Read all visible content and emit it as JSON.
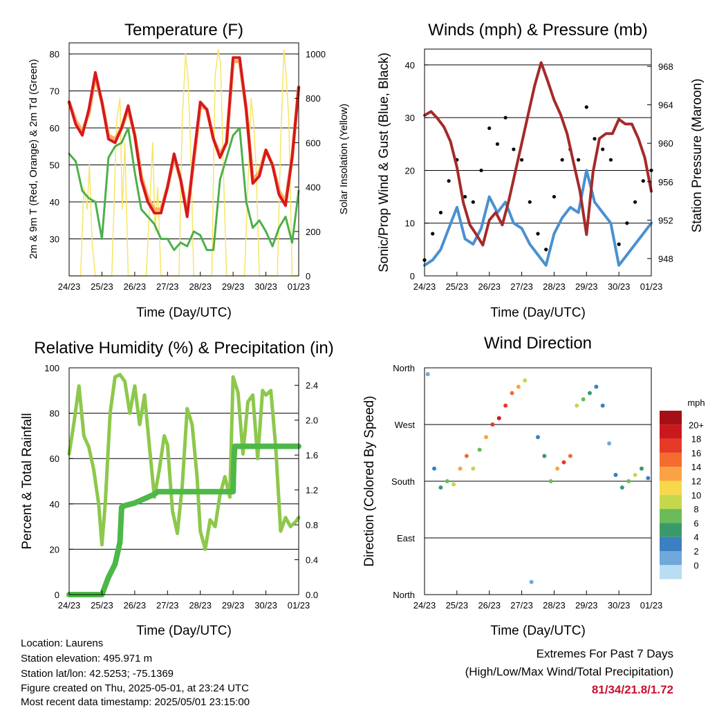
{
  "chart_data": [
    {
      "type": "line",
      "title": "Temperature (F)",
      "xlabel": "Time (Day/UTC)",
      "ylabel": "2m & 9m T (Red, Orange) & 2m Td (Green)",
      "y2label": "Solar Insolation (Yellow)",
      "x_ticks": [
        "24/23",
        "25/23",
        "26/23",
        "27/23",
        "28/23",
        "29/23",
        "30/23",
        "01/23"
      ],
      "ylim": [
        20,
        83
      ],
      "y_ticks": [
        30,
        40,
        50,
        60,
        70,
        80
      ],
      "y2lim": [
        0,
        1050
      ],
      "y2_ticks": [
        0,
        200,
        400,
        600,
        800,
        1000
      ],
      "grid": "horizontal at major y ticks",
      "colors": {
        "t2m": "#d7191c",
        "t9m": "#fdae61",
        "td2m": "#4daf4a",
        "solar": "#f7e463"
      },
      "series": [
        {
          "name": "2m T",
          "axis": "left",
          "x": [
            0,
            0.2,
            0.4,
            0.6,
            0.8,
            1.0,
            1.2,
            1.4,
            1.6,
            1.8,
            2.0,
            2.2,
            2.4,
            2.6,
            2.8,
            3.0,
            3.2,
            3.4,
            3.6,
            3.8,
            4.0,
            4.2,
            4.4,
            4.6,
            4.8,
            5.0,
            5.2,
            5.4,
            5.6,
            5.8,
            6.0,
            6.2,
            6.4,
            6.6,
            6.8,
            7.0
          ],
          "values": [
            67,
            61,
            58,
            65,
            75,
            67,
            57,
            56,
            60,
            66,
            58,
            46,
            40,
            37,
            37,
            44,
            53,
            46,
            36,
            52,
            67,
            65,
            57,
            52,
            56,
            79,
            79,
            65,
            45,
            47,
            54,
            50,
            42,
            39,
            52,
            71
          ]
        },
        {
          "name": "9m T",
          "axis": "left",
          "x": [
            0,
            0.2,
            0.4,
            0.6,
            0.8,
            1.0,
            1.2,
            1.4,
            1.6,
            1.8,
            2.0,
            2.2,
            2.4,
            2.6,
            2.8,
            3.0,
            3.2,
            3.4,
            3.6,
            3.8,
            4.0,
            4.2,
            4.4,
            4.6,
            4.8,
            5.0,
            5.2,
            5.4,
            5.6,
            5.8,
            6.0,
            6.2,
            6.4,
            6.6,
            6.8,
            7.0
          ],
          "values": [
            67,
            62,
            59,
            64,
            74,
            67,
            58,
            57,
            60,
            65,
            58,
            47,
            41,
            38,
            38,
            44,
            52,
            46,
            37,
            51,
            66,
            65,
            57,
            53,
            56,
            78,
            78,
            65,
            46,
            48,
            54,
            50,
            43,
            40,
            52,
            71
          ]
        },
        {
          "name": "2m Td",
          "axis": "left",
          "x": [
            0,
            0.2,
            0.4,
            0.6,
            0.8,
            1.0,
            1.2,
            1.4,
            1.6,
            1.8,
            2.0,
            2.2,
            2.4,
            2.6,
            2.8,
            3.0,
            3.2,
            3.4,
            3.6,
            3.8,
            4.0,
            4.2,
            4.4,
            4.6,
            4.8,
            5.0,
            5.2,
            5.4,
            5.6,
            5.8,
            6.0,
            6.2,
            6.4,
            6.6,
            6.8,
            7.0
          ],
          "values": [
            53,
            51,
            43,
            41,
            40,
            30,
            52,
            55,
            56,
            60,
            48,
            38,
            36,
            34,
            30,
            30,
            27,
            29,
            28,
            32,
            31,
            27,
            27,
            46,
            52,
            58,
            60,
            40,
            33,
            35,
            32,
            28,
            33,
            36,
            29,
            43
          ]
        },
        {
          "name": "Solar Insolation",
          "axis": "right",
          "x": [
            0,
            0.35,
            0.45,
            0.55,
            0.62,
            0.7,
            0.8,
            1.0,
            1.3,
            1.45,
            1.55,
            1.62,
            1.7,
            1.8,
            2.0,
            2.35,
            2.45,
            2.55,
            2.62,
            2.7,
            2.8,
            3.0,
            3.35,
            3.45,
            3.55,
            3.62,
            3.7,
            3.8,
            4.0,
            4.35,
            4.45,
            4.55,
            4.62,
            4.7,
            4.8,
            5.0,
            5.35,
            5.45,
            5.55,
            5.62,
            5.7,
            5.8,
            6.0,
            6.35,
            6.45,
            6.55,
            6.62,
            6.7,
            6.8,
            7.0
          ],
          "values": [
            0,
            0,
            400,
            300,
            500,
            150,
            0,
            0,
            0,
            700,
            800,
            300,
            600,
            0,
            0,
            0,
            300,
            600,
            200,
            400,
            0,
            0,
            0,
            700,
            1000,
            900,
            600,
            0,
            0,
            0,
            900,
            1020,
            950,
            500,
            0,
            0,
            0,
            400,
            800,
            700,
            500,
            0,
            0,
            0,
            600,
            1020,
            900,
            700,
            0,
            0
          ]
        }
      ]
    },
    {
      "type": "line",
      "title": "Winds (mph) & Pressure (mb)",
      "xlabel": "Time (Day/UTC)",
      "ylabel": "Sonic/Prop Wind & Gust (Blue, Black)",
      "y2label": "Station Pressure (Maroon)",
      "x_ticks": [
        "24/23",
        "25/23",
        "26/23",
        "27/23",
        "28/23",
        "29/23",
        "30/23",
        "01/23"
      ],
      "ylim": [
        0,
        43
      ],
      "y_ticks": [
        0,
        10,
        20,
        30,
        40
      ],
      "y2lim": [
        946.2,
        969.8
      ],
      "y2_ticks": [
        948,
        952,
        956,
        960,
        964,
        968
      ],
      "grid": "horizontal at major y ticks",
      "colors": {
        "wind": "#4a90d0",
        "gust": "#000000",
        "pressure": "#a52a2a"
      },
      "series": [
        {
          "name": "Sonic/Prop Wind",
          "axis": "left",
          "x": [
            0,
            0.25,
            0.5,
            0.75,
            1.0,
            1.25,
            1.5,
            1.75,
            2.0,
            2.25,
            2.5,
            2.75,
            3.0,
            3.25,
            3.5,
            3.75,
            4.0,
            4.25,
            4.5,
            4.75,
            5.0,
            5.25,
            5.5,
            5.75,
            6.0,
            6.25,
            6.5,
            6.75,
            7.0
          ],
          "values": [
            2,
            3,
            5,
            9,
            13,
            7,
            6,
            9,
            15,
            12,
            14,
            10,
            9,
            6,
            4,
            2,
            8,
            11,
            13,
            12,
            20,
            14,
            12,
            10,
            2,
            4,
            6,
            8,
            10
          ]
        },
        {
          "name": "Gust",
          "axis": "left",
          "x": [
            0,
            0.25,
            0.5,
            0.75,
            1.0,
            1.25,
            1.5,
            1.75,
            2.0,
            2.25,
            2.5,
            2.75,
            3.0,
            3.25,
            3.5,
            3.75,
            4.0,
            4.25,
            4.5,
            4.75,
            5.0,
            5.25,
            5.5,
            5.75,
            6.0,
            6.25,
            6.5,
            6.75,
            7.0
          ],
          "values": [
            3,
            8,
            12,
            18,
            22,
            15,
            14,
            20,
            28,
            25,
            30,
            24,
            22,
            14,
            8,
            5,
            15,
            22,
            24,
            22,
            32,
            26,
            24,
            22,
            6,
            10,
            14,
            18,
            20
          ]
        },
        {
          "name": "Station Pressure",
          "axis": "right",
          "x": [
            0,
            0.2,
            0.4,
            0.6,
            0.8,
            1.0,
            1.2,
            1.4,
            1.6,
            1.8,
            2.0,
            2.2,
            2.4,
            2.6,
            2.8,
            3.0,
            3.2,
            3.4,
            3.6,
            3.8,
            4.0,
            4.2,
            4.4,
            4.6,
            4.8,
            5.0,
            5.2,
            5.4,
            5.6,
            5.8,
            6.0,
            6.2,
            6.4,
            6.6,
            6.8,
            7.0
          ],
          "values": [
            962.9,
            963.3,
            962.6,
            961.7,
            960.2,
            957.5,
            953.8,
            951.5,
            950.5,
            949.4,
            952.0,
            952.8,
            951.5,
            954.0,
            957.0,
            960.0,
            963.0,
            966.0,
            968.4,
            966.5,
            964.5,
            963.0,
            961.0,
            958.0,
            955.0,
            950.5,
            957.0,
            960.5,
            961.0,
            961.0,
            962.5,
            962.0,
            962.0,
            960.5,
            958.5,
            955.0
          ]
        }
      ]
    },
    {
      "type": "line",
      "title": "Relative Humidity (%) & Precipitation (in)",
      "xlabel": "Time (Day/UTC)",
      "ylabel": "Percent & Total Rainfall",
      "x_ticks": [
        "24/23",
        "25/23",
        "26/23",
        "27/23",
        "28/23",
        "29/23",
        "30/23",
        "01/23"
      ],
      "ylim": [
        0,
        100
      ],
      "y_ticks": [
        0,
        20,
        40,
        60,
        80,
        100
      ],
      "y2lim": [
        0,
        2.6
      ],
      "y2_ticks": [
        "0.0",
        "0.4",
        "0.8",
        "1.2",
        "1.6",
        "2.0",
        "2.4"
      ],
      "grid": "horizontal at major y ticks",
      "colors": {
        "rh": "#8dc84b",
        "precip": "#4db848"
      },
      "series": [
        {
          "name": "Relative Humidity",
          "axis": "left",
          "x": [
            0,
            0.15,
            0.3,
            0.45,
            0.6,
            0.75,
            0.9,
            1.0,
            1.1,
            1.25,
            1.4,
            1.55,
            1.7,
            1.85,
            2.0,
            2.15,
            2.3,
            2.45,
            2.6,
            2.75,
            2.9,
            3.0,
            3.15,
            3.3,
            3.45,
            3.6,
            3.75,
            3.9,
            4.0,
            4.15,
            4.3,
            4.45,
            4.6,
            4.75,
            4.9,
            5.0,
            5.15,
            5.3,
            5.45,
            5.6,
            5.75,
            5.9,
            6.0,
            6.15,
            6.3,
            6.45,
            6.6,
            6.75,
            6.9,
            7.0
          ],
          "values": [
            62,
            76,
            92,
            70,
            65,
            55,
            40,
            22,
            40,
            80,
            96,
            97,
            94,
            80,
            92,
            75,
            88,
            65,
            43,
            55,
            70,
            66,
            37,
            27,
            48,
            82,
            75,
            52,
            28,
            20,
            33,
            30,
            44,
            52,
            43,
            96,
            89,
            62,
            85,
            88,
            60,
            90,
            88,
            90,
            65,
            28,
            34,
            30,
            32,
            34
          ]
        },
        {
          "name": "Total Precipitation",
          "axis": "right",
          "x": [
            0,
            0.5,
            1.0,
            1.2,
            1.4,
            1.55,
            1.6,
            1.7,
            2.0,
            2.3,
            2.6,
            2.7,
            3.0,
            4.0,
            5.0,
            5.02,
            5.05,
            5.5,
            6.0,
            7.0
          ],
          "values": [
            0,
            0,
            0,
            0.2,
            0.35,
            0.6,
            1.0,
            1.02,
            1.05,
            1.1,
            1.15,
            1.18,
            1.18,
            1.18,
            1.18,
            1.5,
            1.7,
            1.7,
            1.7,
            1.7
          ]
        }
      ]
    },
    {
      "type": "scatter",
      "title": "Wind Direction",
      "xlabel": "Time (Day/UTC)",
      "ylabel": "Direction (Colored By Speed)",
      "x_ticks": [
        "24/23",
        "25/23",
        "26/23",
        "27/23",
        "28/23",
        "29/23",
        "30/23",
        "01/23"
      ],
      "y_ticks": [
        "North",
        "East",
        "South",
        "West",
        "North"
      ],
      "ylim": [
        0,
        360
      ],
      "grid": "horizontal at major y ticks",
      "legend": {
        "title": "mph",
        "placement": "right",
        "labels": [
          "20+",
          "18",
          "16",
          "14",
          "12",
          "10",
          "8",
          "6",
          "4",
          "2",
          "0"
        ],
        "colors": [
          "#a50f15",
          "#cb181d",
          "#e53a26",
          "#f46d2e",
          "#fba244",
          "#f6d84a",
          "#c5d84c",
          "#6cbb5b",
          "#3a9a6a",
          "#3c7fc2",
          "#6fa8db",
          "#b9ddf2"
        ]
      },
      "series": [
        {
          "name": "Wind Direction",
          "x": [
            0.1,
            0.3,
            0.5,
            0.7,
            0.9,
            1.1,
            1.3,
            1.5,
            1.7,
            1.9,
            2.1,
            2.3,
            2.5,
            2.7,
            2.9,
            3.1,
            3.3,
            3.5,
            3.7,
            3.9,
            4.1,
            4.3,
            4.5,
            4.7,
            4.9,
            5.1,
            5.3,
            5.5,
            5.7,
            5.9,
            6.1,
            6.3,
            6.5,
            6.7,
            6.9
          ],
          "values": [
            350,
            200,
            170,
            180,
            175,
            200,
            220,
            200,
            230,
            250,
            270,
            280,
            300,
            320,
            330,
            340,
            20,
            250,
            220,
            180,
            200,
            210,
            220,
            300,
            310,
            320,
            330,
            300,
            240,
            190,
            170,
            180,
            190,
            200,
            185
          ],
          "speeds": [
            2,
            4,
            6,
            8,
            10,
            12,
            14,
            10,
            8,
            12,
            16,
            18,
            16,
            14,
            12,
            10,
            2,
            4,
            6,
            8,
            12,
            16,
            14,
            10,
            8,
            6,
            4,
            3,
            2,
            4,
            6,
            8,
            10,
            6,
            4
          ]
        }
      ]
    }
  ],
  "info": {
    "location": "Location: Laurens",
    "elevation": "Station elevation: 495.971 m",
    "latlon": "Station lat/lon: 42.5253; -75.1369",
    "created": "Figure created on Thu, 2025-05-01, at 23:24 UTC",
    "recent": "Most recent data timestamp: 2025/05/01 23:15:00"
  },
  "extremes": {
    "line1": "Extremes For Past 7 Days",
    "line2": "(High/Low/Max Wind/Total Precipitation)",
    "values": "81/34/21.8/1.72",
    "value_color": "#c8102e"
  }
}
